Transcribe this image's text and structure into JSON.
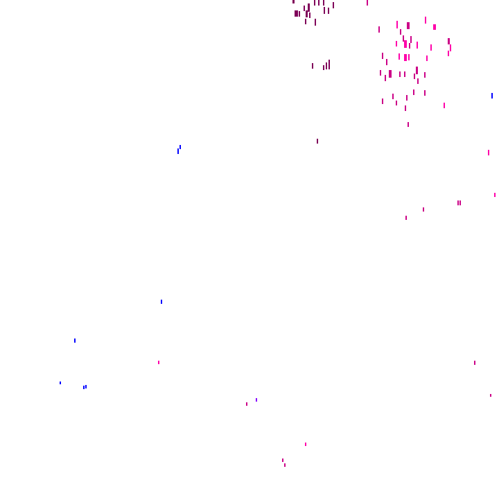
{
  "map": {
    "background": "#ffffff",
    "colors": {
      "dark": "#80005a",
      "mid": "#cc0088",
      "bright": "#ff00aa",
      "blue": "#0000ff",
      "violet": "#8800ff"
    }
  }
}
